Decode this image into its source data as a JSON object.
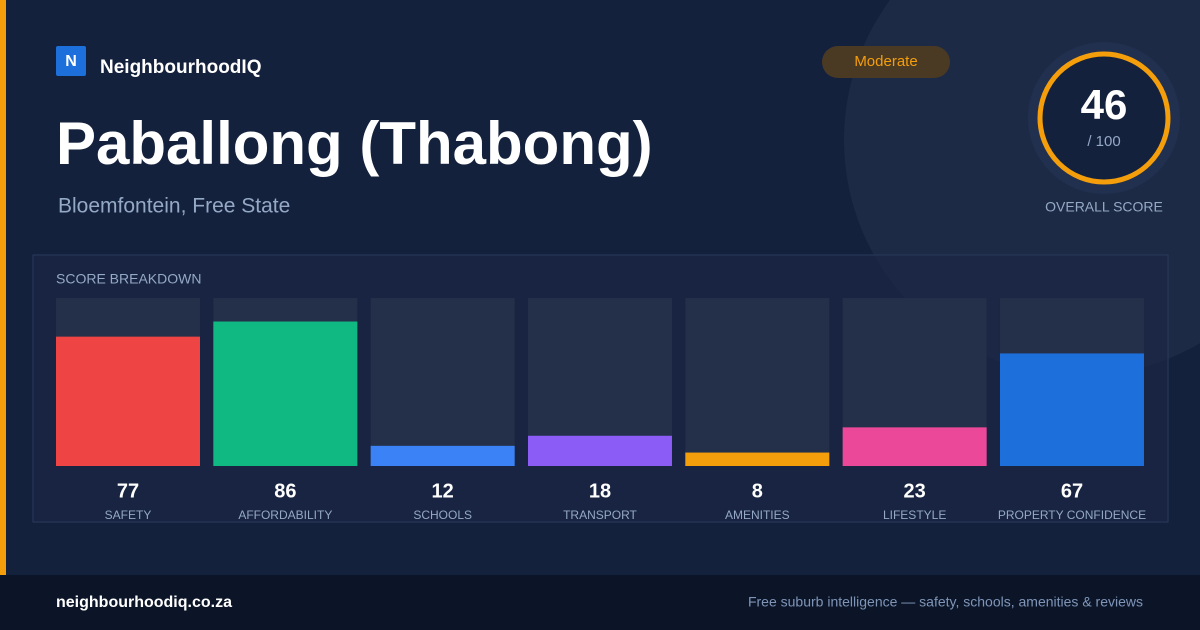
{
  "brand": {
    "logo": "N",
    "name": "NeighbourhoodIQ"
  },
  "badge": "Moderate",
  "title": "Paballong (Thabong)",
  "subtitle": "Bloemfontein, Free State",
  "score": {
    "value": 46,
    "out_of": "/ 100",
    "label": "OVERALL SCORE"
  },
  "chart_data": {
    "type": "bar",
    "title": "SCORE BREAKDOWN",
    "categories": [
      "SAFETY",
      "AFFORDABILITY",
      "SCHOOLS",
      "TRANSPORT",
      "AMENITIES",
      "LIFESTYLE",
      "PROPERTY CONFIDENCE"
    ],
    "values": [
      77,
      86,
      12,
      18,
      8,
      23,
      67
    ],
    "colors": [
      "#ef4444",
      "#10b981",
      "#3b82f6",
      "#8b5cf6",
      "#f59e0b",
      "#ec4899",
      "#1d6fdc"
    ],
    "ylim": [
      0,
      100
    ]
  },
  "footer": {
    "site": "neighbourhoodiq.co.za",
    "tagline": "Free suburb intelligence — safety, schools, amenities & reviews"
  }
}
